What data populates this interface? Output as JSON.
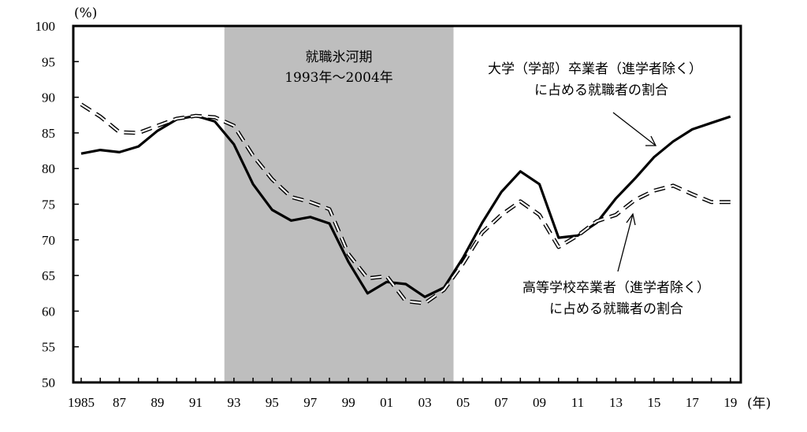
{
  "chart_data": {
    "type": "line",
    "y_unit": "(%)",
    "x_unit": "(年)",
    "ylim": [
      50,
      100
    ],
    "y_ticks": [
      50,
      55,
      60,
      65,
      70,
      75,
      80,
      85,
      90,
      95,
      100
    ],
    "x_years": [
      1985,
      1986,
      1987,
      1988,
      1989,
      1990,
      1991,
      1992,
      1993,
      1994,
      1995,
      1996,
      1997,
      1998,
      1999,
      2000,
      2001,
      2002,
      2003,
      2004,
      2005,
      2006,
      2007,
      2008,
      2009,
      2010,
      2011,
      2012,
      2013,
      2014,
      2015,
      2016,
      2017,
      2018,
      2019
    ],
    "x_tick_labels": [
      {
        "year": 1985,
        "label": "1985"
      },
      {
        "year": 1987,
        "label": "87"
      },
      {
        "year": 1989,
        "label": "89"
      },
      {
        "year": 1991,
        "label": "91"
      },
      {
        "year": 1993,
        "label": "93"
      },
      {
        "year": 1995,
        "label": "95"
      },
      {
        "year": 1997,
        "label": "97"
      },
      {
        "year": 1999,
        "label": "99"
      },
      {
        "year": 2001,
        "label": "01"
      },
      {
        "year": 2003,
        "label": "03"
      },
      {
        "year": 2005,
        "label": "05"
      },
      {
        "year": 2007,
        "label": "07"
      },
      {
        "year": 2009,
        "label": "09"
      },
      {
        "year": 2011,
        "label": "11"
      },
      {
        "year": 2013,
        "label": "13"
      },
      {
        "year": 2015,
        "label": "15"
      },
      {
        "year": 2017,
        "label": "17"
      },
      {
        "year": 2019,
        "label": "19"
      }
    ],
    "shaded_region": {
      "from_year": 1993,
      "to_year": 2004,
      "label_line1": "就職氷河期",
      "label_line2": "1993年～2004年",
      "color": "#bebebe"
    },
    "series": [
      {
        "name": "大学（学部）卒業者（進学者除く）に占める就職者の割合",
        "style": "solid",
        "values": [
          82.1,
          82.6,
          82.3,
          83.1,
          85.3,
          86.9,
          87.4,
          86.6,
          83.4,
          77.8,
          74.2,
          72.7,
          73.2,
          72.3,
          66.9,
          62.5,
          64.1,
          63.8,
          62.0,
          63.3,
          67.5,
          72.4,
          76.7,
          79.6,
          77.8,
          70.3,
          70.6,
          72.4,
          75.8,
          78.6,
          81.6,
          83.8,
          85.5,
          86.4,
          87.3
        ]
      },
      {
        "name": "高等学校卒業者（進学者除く）に占める就職者の割合",
        "style": "dashed",
        "values": [
          89.0,
          87.3,
          85.1,
          85.0,
          86.0,
          87.0,
          87.4,
          87.2,
          86.0,
          81.8,
          78.5,
          76.0,
          75.3,
          74.3,
          68.0,
          64.6,
          64.9,
          61.4,
          61.1,
          63.0,
          66.7,
          71.0,
          73.5,
          75.4,
          73.5,
          69.0,
          70.6,
          72.6,
          73.5,
          75.6,
          76.9,
          77.6,
          76.4,
          75.3,
          75.3
        ]
      }
    ],
    "annotations": {
      "univ": {
        "line1": "大学（学部）卒業者（進学者除く）",
        "line2": "に占める就職者の割合"
      },
      "high": {
        "line1": "高等学校卒業者（進学者除く）",
        "line2": "に占める就職者の割合"
      }
    }
  }
}
